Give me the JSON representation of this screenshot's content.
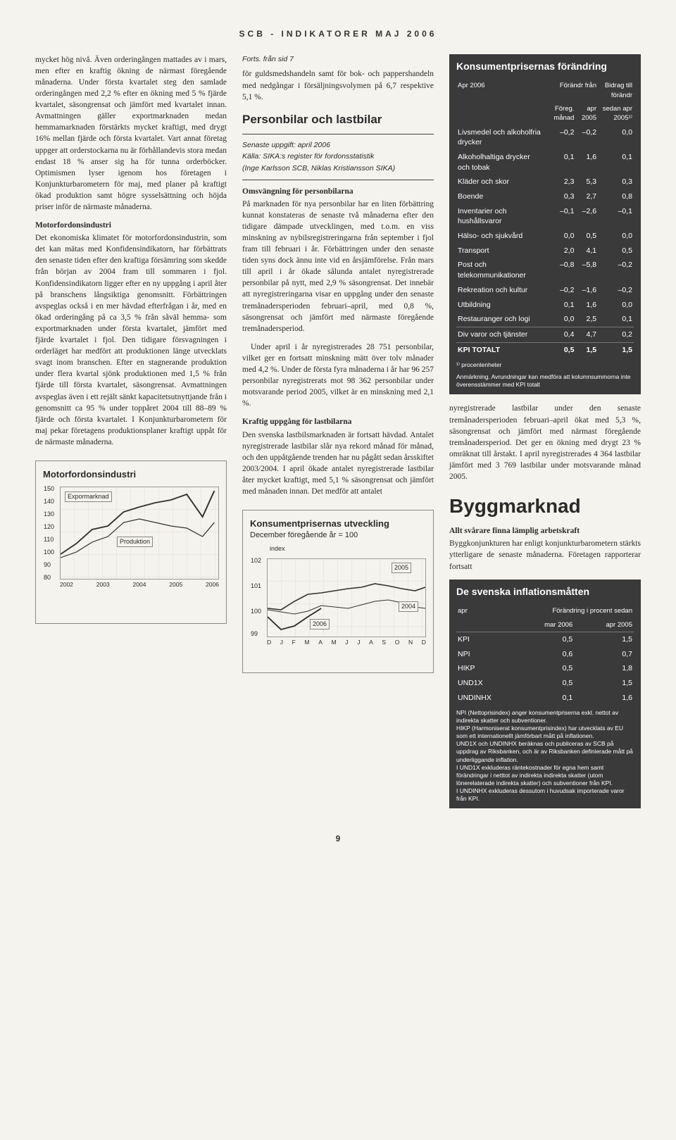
{
  "masthead": "SCB - INDIKATORER  MAJ 2006",
  "forts": "Forts. från sid 7",
  "col1": {
    "p1": "mycket hög nivå. Även orderingången mattades av i mars, men efter en kraftig ökning de närmast föregående månaderna. Under första kvartalet steg den samlade orderingången med 2,2 % efter en ökning med 5 % fjärde kvartalet, säsongrensat och jämfört med kvartalet innan. Avmattningen gäller exportmarknaden medan hemmamarknaden förstärkts mycket kraftigt, med drygt 16% mellan fjärde och första kvartalet. Vart annat företag uppger att orderstockarna nu är förhållandevis stora medan endast 18 % anser sig ha för tunna orderböcker. Optimismen lyser igenom hos företagen i Konjunkturbarometern för maj, med planer på kraftigt ökad produktion samt högre sysselsättning och höjda priser inför de närmaste månaderna.",
    "h2": "Motorfordonsindustri",
    "p2": "Det ekonomiska klimatet för motorfordonsindustrin, som det kan mätas med Konfidensindikatorn, har förbättrats den senaste tiden efter den kraftiga försämring som skedde från början av 2004 fram till sommaren i fjol. Konfidensindikatorn ligger efter en ny uppgång i april åter på branschens långsiktiga genomsnitt. Förbättringen avspeglas också i en mer hävdad efterfrågan i år, med en ökad orderingång på ca 3,5 % från såväl hemma- som exportmarknaden under första kvartalet, jämfört med fjärde kvartalet i fjol. Den tidigare försvagningen i orderläget har medfört att produktionen länge utvecklats svagt inom branschen. Efter en stagnerande produktion under flera kvartal sjönk produktionen med 1,5 % från fjärde till första kvartalet, säsongrensat. Avmattningen avspeglas även i ett rejält sänkt kapacitetsutnyttjande från i genomsnitt ca 95 % under toppåret 2004 till 88–89 % fjärde och första kvartalet. I Konjunkturbarometern för maj pekar företagens produktionsplaner kraftigt uppåt för de närmaste månaderna."
  },
  "col2": {
    "p1": "för guldsmedshandeln samt för bok- och pappershandeln med nedgångar i försäljningsvolymen på 6,7 respektive 5,1 %.",
    "h": "Personbilar och lastbilar",
    "info1": "Senaste uppgift: april 2006",
    "info2": "Källa: SIKA:s register för fordonsstatistik",
    "info3": "(Inge Karlsson SCB, Niklas Kristiansson SIKA)",
    "sub1": "Omsvängning för personbilarna",
    "p2": "På marknaden för nya personbilar har en liten förbättring kunnat konstateras de senaste två månaderna efter den tidigare dämpade utvecklingen, med t.o.m. en viss minskning av nybilsregistreringarna från september i fjol fram till februari i år. Förbättringen under den senaste tiden syns dock ännu inte vid en årsjämförelse. Från mars till april i år ökade sålunda antalet nyregistrerade personbilar på nytt, med 2,9 % säsongrensat. Det innebär att nyregistreringarna visar en uppgång under den senaste tremånadersperioden februari–april, med 0,8 %, säsongrensat och jämfört med närmaste föregående tremånadersperiod.",
    "p3": "Under april i år nyregistrerades 28 751 personbilar, vilket ger en fortsatt minskning mätt över tolv månader med 4,2 %. Under de första fyra månaderna i år har 96 257 personbilar nyregistrerats mot 98 362 personbilar under motsvarande period 2005, vilket är en minskning med 2,1 %.",
    "sub2": "Kraftig uppgång för lastbilarna",
    "p4": "Den svenska lastbilsmarknaden är fortsatt hävdad. Antalet nyregistrerade lastbilar slår nya rekord månad för månad, och den uppåtgående trenden har nu pågått sedan årsskiftet 2003/2004. I april ökade antalet nyregistrerade lastbilar åter mycket kraftigt, med 5,1 % säsongrensat och jämfört med månaden innan. Det medför att antalet"
  },
  "col3": {
    "p1": "nyregistrerade lastbilar under den senaste tremånadersperioden februari–april ökat med 5,3 %, säsongrensat och jämfört med närmast föregående tremånadersperiod. Det ger en ökning med drygt 23 % omräknat till årstakt. I april nyregistrerades 4 364 lastbilar jämfört med 3 769 lastbilar under motsvarande månad 2005.",
    "h": "Byggmarknad",
    "sub": "Allt svårare finna lämplig arbetskraft",
    "p2": "Byggkonjunkturen har enligt konjunkturbarometern stärkts ytterligare de senaste månaderna. Företagen rapporterar fortsatt"
  },
  "chart1": {
    "title": "Motorfordonsindustri",
    "series": [
      "Expormarknad",
      "Produktion"
    ],
    "ylim": [
      80,
      150
    ],
    "yticks": [
      80,
      90,
      100,
      110,
      120,
      130,
      140,
      150
    ],
    "xticks": [
      "2002",
      "2003",
      "2004",
      "2005",
      "2006"
    ],
    "colors": {
      "line": "#333333",
      "grid": "#dddddd",
      "border": "#888888"
    }
  },
  "chart2": {
    "title": "Konsumentprisernas utveckling",
    "subtitle": "December föregående år = 100",
    "ylabel": "index",
    "ylim": [
      99,
      102
    ],
    "yticks": [
      99,
      100,
      101,
      102
    ],
    "xticks": [
      "D",
      "J",
      "F",
      "M",
      "A",
      "M",
      "J",
      "J",
      "A",
      "S",
      "O",
      "N",
      "D"
    ],
    "series": [
      "2005",
      "2004",
      "2006"
    ],
    "colors": {
      "line": "#333333",
      "grid": "#dddddd",
      "border": "#888888"
    }
  },
  "table1": {
    "title": "Konsumentprisernas förändring",
    "period": "Apr 2006",
    "hdr": [
      "",
      "Förändr från",
      "",
      "Bidrag till förändr"
    ],
    "sub": [
      "",
      "Föreg. månad",
      "apr 2005",
      "sedan apr 2005¹⁾"
    ],
    "rows": [
      [
        "Livsmedel och alkoholfria drycker",
        "–0,2",
        "–0,2",
        "0,0"
      ],
      [
        "Alkoholhaltiga drycker och tobak",
        "0,1",
        "1,6",
        "0,1"
      ],
      [
        "Kläder och skor",
        "2,3",
        "5,3",
        "0,3"
      ],
      [
        "Boende",
        "0,3",
        "2,7",
        "0,8"
      ],
      [
        "Inventarier och hushållsvaror",
        "–0,1",
        "–2,6",
        "–0,1"
      ],
      [
        "Hälso- och sjukvård",
        "0,0",
        "0,5",
        "0,0"
      ],
      [
        "Transport",
        "2,0",
        "4,1",
        "0,5"
      ],
      [
        "Post och telekommunikationer",
        "–0,8",
        "–5,8",
        "–0,2"
      ],
      [
        "Rekreation och kultur",
        "–0,2",
        "–1,6",
        "–0,2"
      ],
      [
        "Utbildning",
        "0,1",
        "1,6",
        "0,0"
      ],
      [
        "Restauranger och logi",
        "0,0",
        "2,5",
        "0,1"
      ],
      [
        "Div varor och tjänster",
        "0,4",
        "4,7",
        "0,2"
      ],
      [
        "KPI TOTALT",
        "0,5",
        "1,5",
        "1,5"
      ]
    ],
    "foot1": "¹⁾ procentenheter",
    "foot2": "Anmärkning. Avrundningar kan medföra att kolumnsummorna inte överensstämmer med KPI totalt"
  },
  "table2": {
    "title": "De svenska inflationsmåtten",
    "hdr": [
      "apr",
      "Förändring i procent sedan",
      ""
    ],
    "sub": [
      "",
      "mar 2006",
      "apr 2005"
    ],
    "rows": [
      [
        "KPI",
        "0,5",
        "1,5"
      ],
      [
        "NPI",
        "0,6",
        "0,7"
      ],
      [
        "HIKP",
        "0,5",
        "1,8"
      ],
      [
        "UND1X",
        "0,5",
        "1,5"
      ],
      [
        "UNDINHX",
        "0,1",
        "1,6"
      ]
    ],
    "foot": "NPI (Nettoprisindex) anger konsumentpriserna exkl. nettot av indirekta skatter och subventioner.\nHIKP (Harmoniserat konsumentprisindex) har utvecklats av EU som ett internationellt jämförbart mått på inflationen.\nUND1X och UNDINHX beräknas och publiceras av SCB på uppdrag av Riksbanken, och är av Riksbanken definierade mått på underliggande inflation.\nI UND1X exkluderas räntekostnader för egna hem samt förändringar i netttot av indirekta indirekta skatter (utom lönerelaterade indirekta skatter) och subventioner från KPI.\nI UNDINHX exkluderas dessutom i huvudsak importerade varor från KPI."
  },
  "page": "9"
}
